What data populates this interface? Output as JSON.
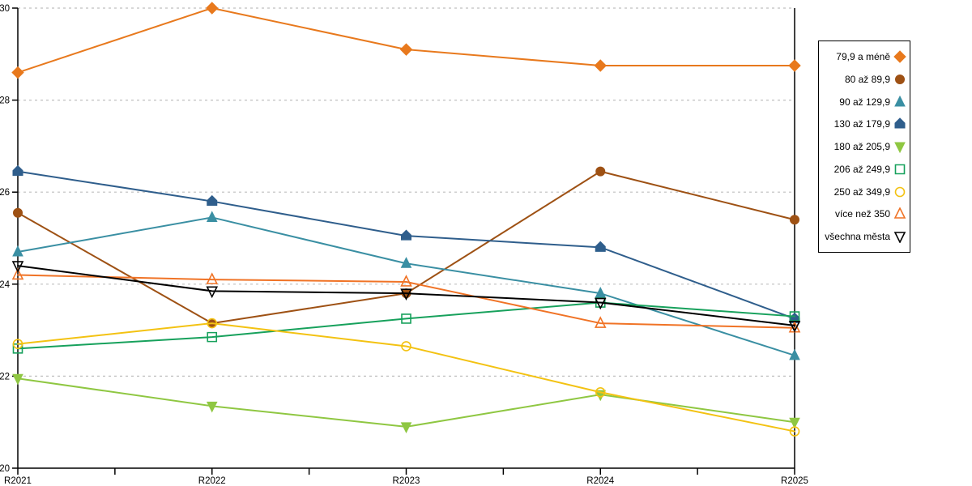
{
  "chart_data": {
    "type": "line",
    "title": "",
    "xlabel": "",
    "ylabel": "",
    "categories": [
      "R2021",
      "R2022",
      "R2023",
      "R2024",
      "R2025"
    ],
    "y_axis": {
      "min": 20,
      "max": 30,
      "tick_step": 2,
      "ticks": [
        20,
        22,
        24,
        26,
        28,
        30
      ]
    },
    "grid": "horizontal-dashed",
    "legend_position": "right",
    "series": [
      {
        "name": "79,9 a méně",
        "color": "#E8791D",
        "marker": "diamond",
        "fill": "filled",
        "values": [
          28.6,
          30.0,
          29.1,
          28.75,
          28.75
        ]
      },
      {
        "name": "80 až 89,9",
        "color": "#9E5114",
        "marker": "circle",
        "fill": "filled",
        "values": [
          25.55,
          23.15,
          23.8,
          26.45,
          25.4
        ]
      },
      {
        "name": "90 až 129,9",
        "color": "#3A8FA3",
        "marker": "triangle-up",
        "fill": "filled",
        "values": [
          24.7,
          25.45,
          24.45,
          23.8,
          22.45
        ]
      },
      {
        "name": "130 až 179,9",
        "color": "#2F5E8C",
        "marker": "pentagon",
        "fill": "filled",
        "values": [
          26.45,
          25.8,
          25.05,
          24.8,
          23.25
        ]
      },
      {
        "name": "180 až 205,9",
        "color": "#8FC742",
        "marker": "triangle-down",
        "fill": "filled",
        "values": [
          21.95,
          21.35,
          20.9,
          21.6,
          21.0
        ]
      },
      {
        "name": "206 až 249,9",
        "color": "#17A15C",
        "marker": "square",
        "fill": "hollow",
        "values": [
          22.6,
          22.85,
          23.25,
          23.6,
          23.3
        ]
      },
      {
        "name": "250 až 349,9",
        "color": "#F3C212",
        "marker": "circle",
        "fill": "hollow",
        "values": [
          22.7,
          23.15,
          22.65,
          21.65,
          20.8
        ]
      },
      {
        "name": "více než 350",
        "color": "#F07326",
        "marker": "triangle-up",
        "fill": "hollow",
        "values": [
          24.2,
          24.1,
          24.05,
          23.15,
          23.05
        ]
      },
      {
        "name": "všechna města",
        "color": "#000000",
        "marker": "triangle-down",
        "fill": "hollow",
        "values": [
          24.4,
          23.85,
          23.8,
          23.6,
          23.1
        ]
      }
    ]
  },
  "colors": {
    "grid": "#BFBFBF",
    "axis": "#000000",
    "background": "#FFFFFF"
  }
}
